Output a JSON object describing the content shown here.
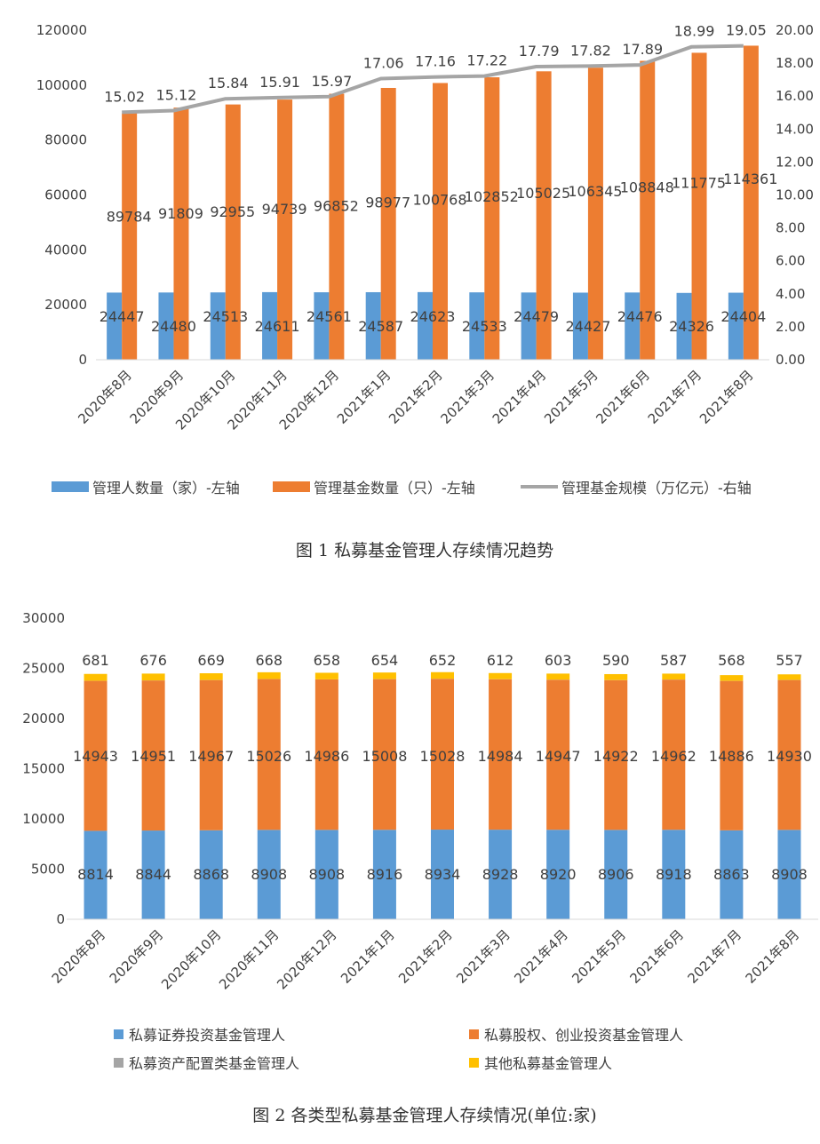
{
  "chart_data": [
    {
      "type": "bar",
      "categories": [
        "2020年8月",
        "2020年9月",
        "2020年10月",
        "2020年11月",
        "2020年12月",
        "2021年1月",
        "2021年2月",
        "2021年3月",
        "2021年4月",
        "2021年5月",
        "2021年6月",
        "2021年7月",
        "2021年8月"
      ],
      "series": [
        {
          "name": "管理人数量（家）-左轴",
          "type": "bar",
          "axis": "left",
          "values": [
            24447,
            24480,
            24513,
            24611,
            24561,
            24587,
            24623,
            24533,
            24479,
            24427,
            24476,
            24326,
            24404
          ]
        },
        {
          "name": "管理基金数量（只）-左轴",
          "type": "bar",
          "axis": "left",
          "values": [
            89784,
            91809,
            92955,
            94739,
            96852,
            98977,
            100768,
            102852,
            105025,
            106345,
            108848,
            111775,
            114361
          ]
        },
        {
          "name": "管理基金规模（万亿元）-右轴",
          "type": "line",
          "axis": "right",
          "values": [
            15.02,
            15.12,
            15.84,
            15.91,
            15.97,
            17.06,
            17.16,
            17.22,
            17.79,
            17.82,
            17.89,
            18.99,
            19.05
          ]
        }
      ],
      "ylim_left": [
        0,
        120000
      ],
      "yticks_left": [
        "0",
        "20000",
        "40000",
        "60000",
        "80000",
        "100000",
        "120000"
      ],
      "ylim_right": [
        0,
        20
      ],
      "yticks_right": [
        "0.00",
        "2.00",
        "4.00",
        "6.00",
        "8.00",
        "10.00",
        "12.00",
        "14.00",
        "16.00",
        "18.00",
        "20.00"
      ],
      "colors": {
        "managers": "#5b9bd5",
        "funds": "#ed7d31",
        "scale": "#a5a5a5"
      },
      "legend_position": "bottom",
      "grid": false
    },
    {
      "type": "bar",
      "stacked": true,
      "categories": [
        "2020年8月",
        "2020年9月",
        "2020年10月",
        "2020年11月",
        "2020年12月",
        "2021年1月",
        "2021年2月",
        "2021年3月",
        "2021年4月",
        "2021年5月",
        "2021年6月",
        "2021年7月",
        "2021年8月"
      ],
      "series": [
        {
          "name": "私募证券投资基金管理人",
          "values": [
            8814,
            8844,
            8868,
            8908,
            8908,
            8916,
            8934,
            8928,
            8920,
            8906,
            8918,
            8863,
            8908
          ]
        },
        {
          "name": "私募股权、创业投资基金管理人",
          "values": [
            14943,
            14951,
            14967,
            15026,
            14986,
            15008,
            15028,
            14984,
            14947,
            14922,
            14962,
            14886,
            14930
          ]
        },
        {
          "name": "私募资产配置类基金管理人",
          "values": [
            9,
            9,
            9,
            9,
            9,
            9,
            9,
            9,
            9,
            9,
            9,
            9,
            9
          ]
        },
        {
          "name": "其他私募基金管理人",
          "values": [
            681,
            676,
            669,
            668,
            658,
            654,
            652,
            612,
            603,
            590,
            587,
            568,
            557
          ]
        }
      ],
      "ylim": [
        0,
        30000
      ],
      "yticks": [
        "0",
        "5000",
        "10000",
        "15000",
        "20000",
        "25000",
        "30000"
      ],
      "colors": {
        "securities": "#5b9bd5",
        "equity": "#ed7d31",
        "allocation": "#a5a5a5",
        "other": "#ffc000"
      },
      "legend_position": "bottom",
      "grid": false
    }
  ],
  "captions": {
    "fig1": "图 1  私募基金管理人存续情况趋势",
    "fig2": "图 2  各类型私募基金管理人存续情况(单位:家)"
  }
}
